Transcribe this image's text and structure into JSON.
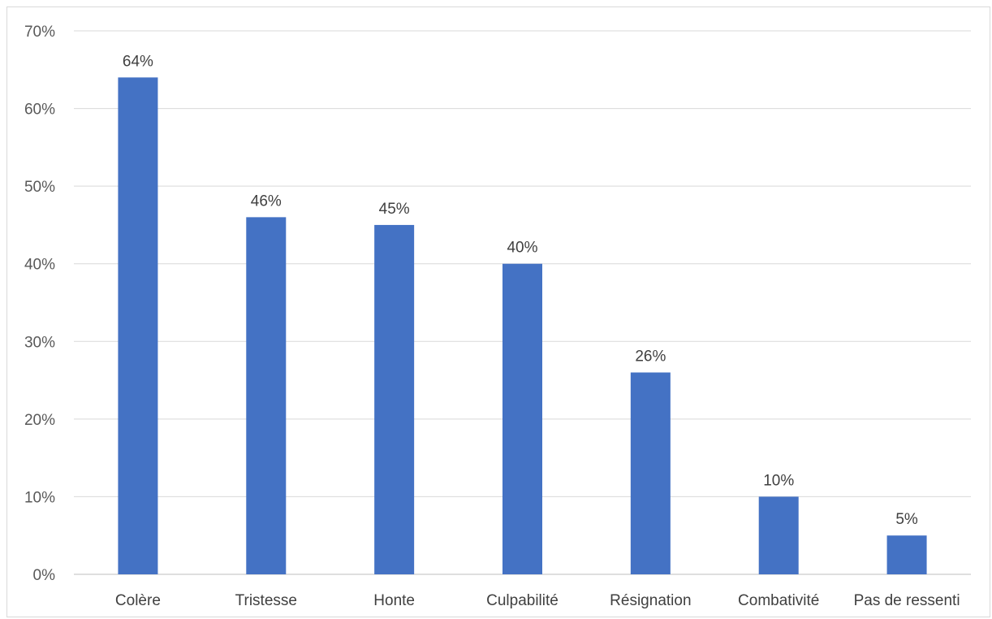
{
  "chart_data": {
    "type": "bar",
    "categories": [
      "Colère",
      "Tristesse",
      "Honte",
      "Culpabilité",
      "Résignation",
      "Combativité",
      "Pas de ressenti"
    ],
    "values": [
      64,
      46,
      45,
      40,
      26,
      10,
      5
    ],
    "data_labels": [
      "64%",
      "46%",
      "45%",
      "40%",
      "26%",
      "10%",
      "5%"
    ],
    "y_ticks": [
      0,
      10,
      20,
      30,
      40,
      50,
      60,
      70
    ],
    "y_tick_labels": [
      "0%",
      "10%",
      "20%",
      "30%",
      "40%",
      "50%",
      "60%",
      "70%"
    ],
    "ylim": [
      0,
      70
    ],
    "title": "",
    "xlabel": "",
    "ylabel": "",
    "grid": true,
    "legend": "none",
    "colors": {
      "bar": "#4472C4",
      "grid": "#d9d9d9",
      "axis": "#bfbfbf"
    }
  }
}
